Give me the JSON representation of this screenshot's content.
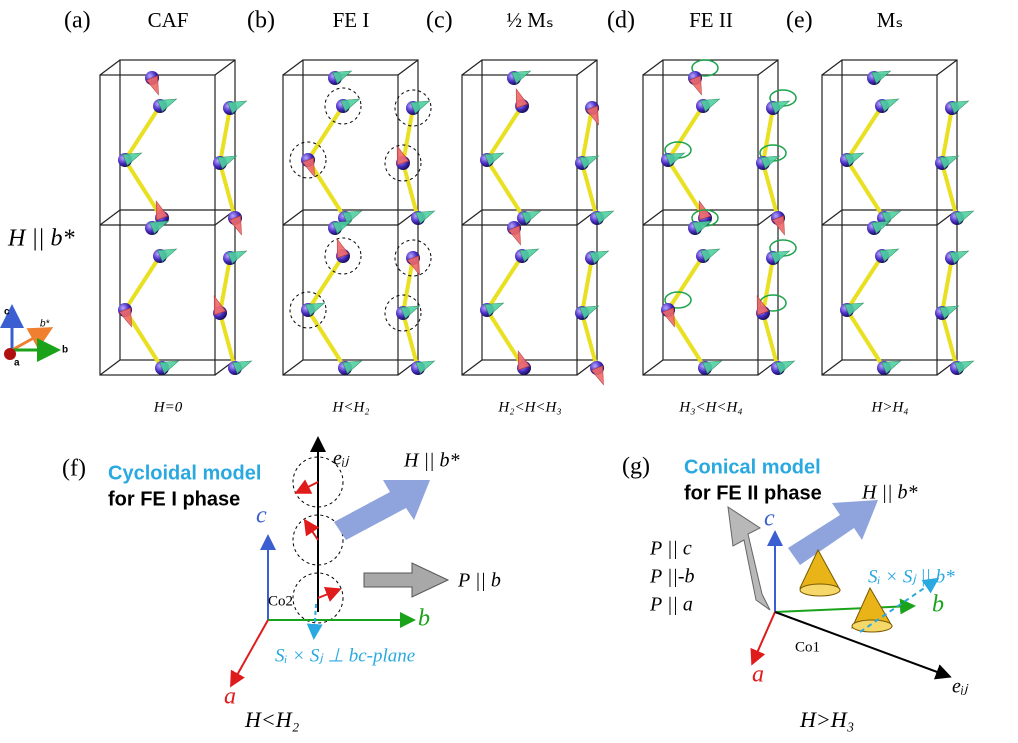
{
  "panels": [
    {
      "label": "(a)",
      "title": "CAF",
      "condition": "H=0"
    },
    {
      "label": "(b)",
      "title": "FE I",
      "condition": "H<H₂"
    },
    {
      "label": "(c)",
      "title": "½ Mₛ",
      "condition": "H₂<H<H₃"
    },
    {
      "label": "(d)",
      "title": "FE II",
      "condition": "H₃<H<H₄"
    },
    {
      "label": "(e)",
      "title": "Mₛ",
      "condition": "H>H₄"
    }
  ],
  "field_label": "H || b*",
  "axes_legend": {
    "c": "c",
    "b_star": "b*",
    "b": "b",
    "a": "a"
  },
  "cycloidal": {
    "label": "(f)",
    "title": "Cycloidal model",
    "subtitle": "for FE I phase",
    "bond": "eᵢⱼ",
    "axis_c": "c",
    "axis_b": "b",
    "axis_a": "a",
    "site": "Co2",
    "field": "H || b*",
    "polarization": "P || b",
    "spin_product": "Sᵢ × Sⱼ ⊥ bc-plane",
    "condition": "H<H₂"
  },
  "conical": {
    "label": "(g)",
    "title": "Conical model",
    "subtitle": "for FE II phase",
    "bond": "eᵢⱼ",
    "axis_c": "c",
    "axis_b": "b",
    "axis_a": "a",
    "site": "Co1",
    "field": "H || b*",
    "polarizations": [
      "P || c",
      "P ||-b",
      "P || a"
    ],
    "spin_product": "Sᵢ × Sⱼ || b*",
    "condition": "H>H₃"
  }
}
